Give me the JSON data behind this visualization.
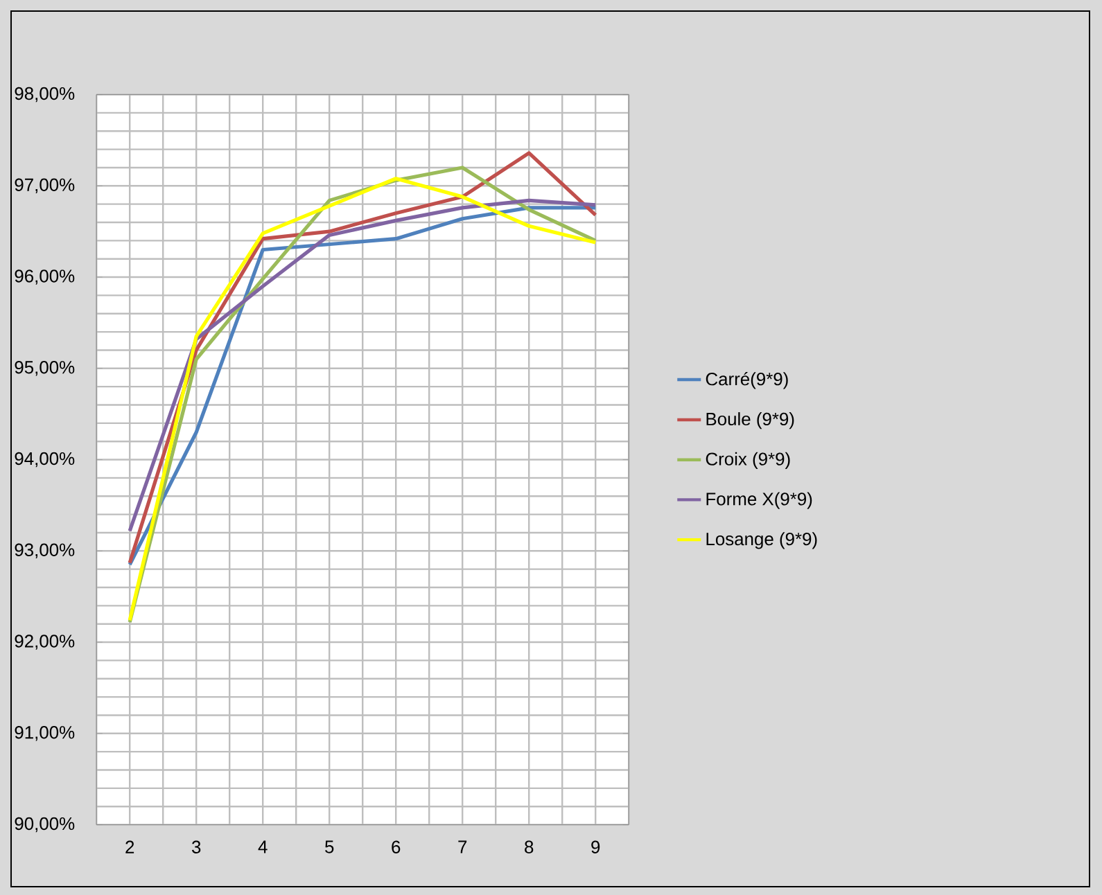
{
  "chart_data": {
    "type": "line",
    "categories": [
      "2",
      "3",
      "4",
      "5",
      "6",
      "7",
      "8",
      "9"
    ],
    "series": [
      {
        "name": "Carré(9*9)",
        "color": "#4f81bd",
        "values": [
          92.85,
          94.3,
          96.3,
          96.36,
          96.42,
          96.64,
          96.76,
          96.76
        ]
      },
      {
        "name": "Boule (9*9)",
        "color": "#c0504d",
        "values": [
          92.87,
          95.2,
          96.42,
          96.5,
          96.7,
          96.88,
          97.36,
          96.68
        ]
      },
      {
        "name": "Croix (9*9)",
        "color": "#9bbb59",
        "values": [
          92.22,
          95.1,
          95.98,
          96.84,
          97.06,
          97.2,
          96.74,
          96.4
        ]
      },
      {
        "name": "Forme X(9*9)",
        "color": "#8064a2",
        "values": [
          93.22,
          95.32,
          95.9,
          96.46,
          96.62,
          96.76,
          96.84,
          96.79
        ]
      },
      {
        "name": "Losange (9*9)",
        "color": "#ffff00",
        "values": [
          92.24,
          95.35,
          96.48,
          96.78,
          97.08,
          96.88,
          96.56,
          96.38
        ]
      }
    ],
    "ylim": [
      90,
      98
    ],
    "yticks": [
      {
        "value": 90,
        "label": "90,00%"
      },
      {
        "value": 91,
        "label": "91,00%"
      },
      {
        "value": 92,
        "label": "92,00%"
      },
      {
        "value": 93,
        "label": "93,00%"
      },
      {
        "value": 94,
        "label": "94,00%"
      },
      {
        "value": 95,
        "label": "95,00%"
      },
      {
        "value": 96,
        "label": "96,00%"
      },
      {
        "value": 97,
        "label": "97,00%"
      },
      {
        "value": 98,
        "label": "98,00%"
      }
    ],
    "grid": true,
    "legend": "right",
    "marker": "none",
    "line_style": "solid"
  }
}
